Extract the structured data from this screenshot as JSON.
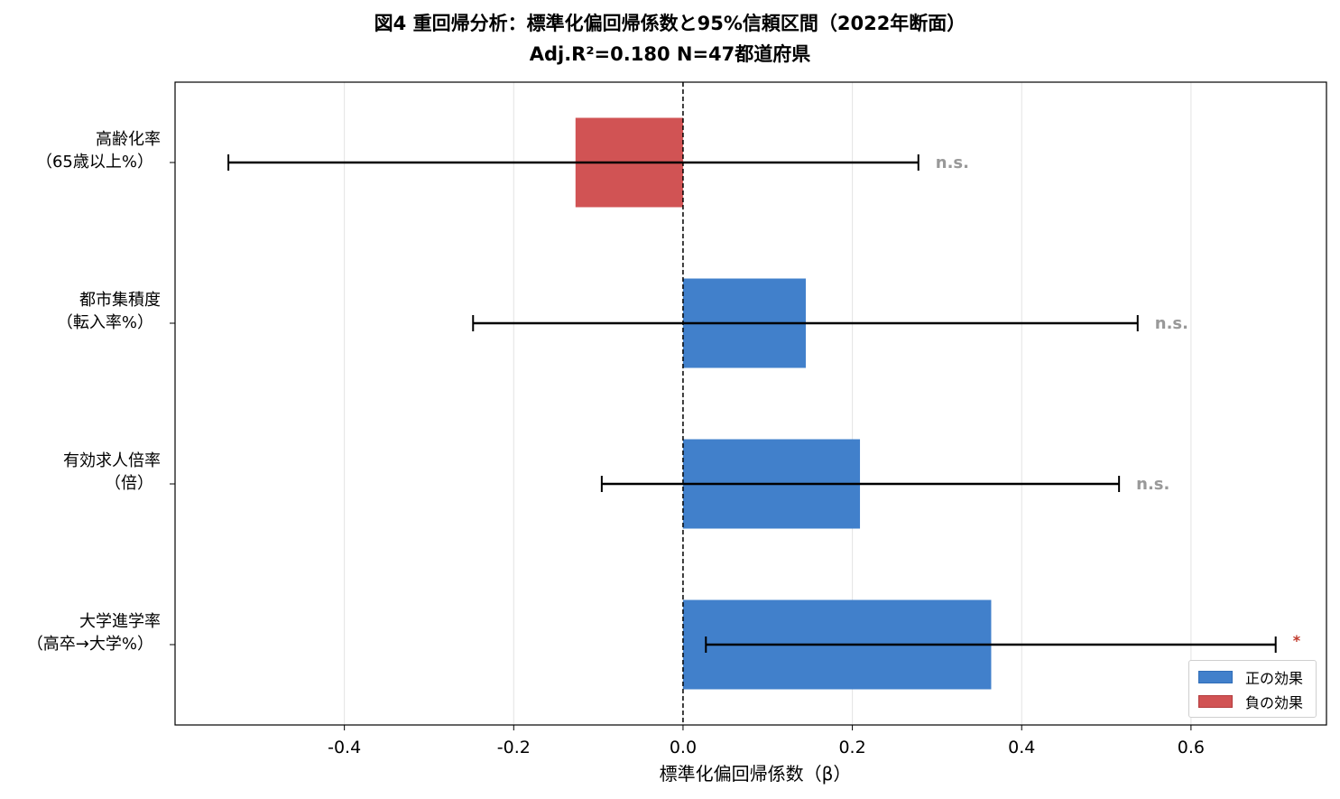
{
  "title": "図4 重回帰分析：標準化偏回帰係数と95%信頼区間（2022年断面）",
  "subtitle": "Adj.R²=0.180  N=47都道府県",
  "chart_data": {
    "type": "bar",
    "orientation": "horizontal",
    "title": "図4 重回帰分析：標準化偏回帰係数と95%信頼区間（2022年断面）",
    "subtitle": "Adj.R²=0.180  N=47都道府県",
    "xlabel": "標準化偏回帰係数（β）",
    "ylabel": "",
    "xlim": [
      -0.6,
      0.76
    ],
    "xticks": [
      "-0.4",
      "-0.2",
      "0.0",
      "0.2",
      "0.4",
      "0.6"
    ],
    "xtick_values": [
      -0.4,
      -0.2,
      0.0,
      0.2,
      0.4,
      0.6
    ],
    "grid": "vertical",
    "reference_line": 0.0,
    "categories": [
      {
        "line1": "高齢化率",
        "line2": "（65歳以上%）",
        "beta": -0.127,
        "ci_low": -0.537,
        "ci_high": 0.278,
        "sig": "n.s.",
        "effect": "negative"
      },
      {
        "line1": "都市集積度",
        "line2": "（転入率%）",
        "beta": 0.145,
        "ci_low": -0.248,
        "ci_high": 0.537,
        "sig": "n.s.",
        "effect": "positive"
      },
      {
        "line1": "有効求人倍率",
        "line2": "（倍）",
        "beta": 0.209,
        "ci_low": -0.096,
        "ci_high": 0.515,
        "sig": "n.s.",
        "effect": "positive"
      },
      {
        "line1": "大学進学率",
        "line2": "（高卒→大学%）",
        "beta": 0.364,
        "ci_low": 0.027,
        "ci_high": 0.7,
        "sig": "*",
        "effect": "positive"
      }
    ],
    "legend": {
      "position": "lower-right",
      "items": [
        {
          "label": "正の効果",
          "color": "#4180cb"
        },
        {
          "label": "負の効果",
          "color": "#d15354"
        }
      ]
    },
    "colors": {
      "positive": "#4180cb",
      "negative": "#d15354",
      "ns_text": "#999999",
      "sig_text": "#c0392b"
    }
  }
}
